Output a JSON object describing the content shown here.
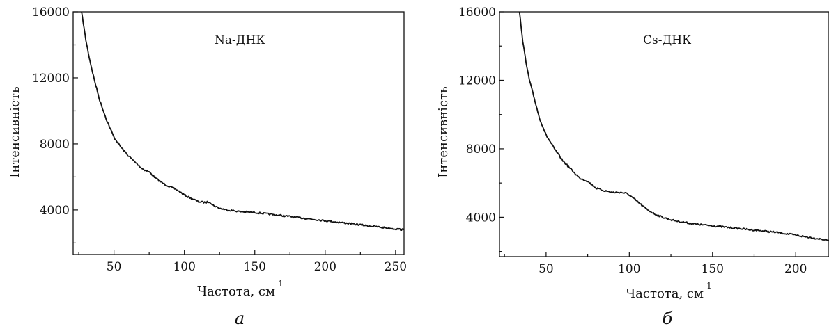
{
  "chart_data": [
    {
      "type": "line",
      "annotation": "Na-ДНК",
      "xlabel": "Частота, см",
      "xlabel_exp": "-1",
      "ylabel": "Інтенсивність",
      "panel_label": "a",
      "xlim": [
        21,
        256
      ],
      "ylim": [
        1300,
        16000
      ],
      "xticks": [
        50,
        100,
        150,
        200,
        250
      ],
      "yticks": [
        4000,
        8000,
        12000,
        16000
      ],
      "series": [
        {
          "x": [
            27,
            30,
            33,
            36,
            40,
            45,
            50,
            55,
            60,
            65,
            70,
            75,
            80,
            85,
            90,
            95,
            100,
            105,
            110,
            115,
            118,
            120,
            125,
            130,
            140,
            150,
            160,
            170,
            180,
            190,
            200,
            210,
            220,
            230,
            240,
            250,
            256
          ],
          "y": [
            16000,
            14300,
            13000,
            11900,
            10600,
            9400,
            8400,
            7800,
            7300,
            6900,
            6500,
            6300,
            5900,
            5600,
            5400,
            5200,
            4900,
            4700,
            4500,
            4450,
            4500,
            4300,
            4100,
            4000,
            3900,
            3850,
            3750,
            3650,
            3550,
            3450,
            3350,
            3250,
            3150,
            3050,
            2950,
            2850,
            2800
          ]
        }
      ]
    },
    {
      "type": "line",
      "annotation": "Cs-ДНК",
      "xlabel": "Частота, см",
      "xlabel_exp": "-1",
      "ylabel": "Інтенсивність",
      "panel_label": "б",
      "xlim": [
        22,
        220
      ],
      "ylim": [
        1700,
        16000
      ],
      "xticks": [
        50,
        100,
        150,
        200
      ],
      "yticks": [
        4000,
        8000,
        12000,
        16000
      ],
      "series": [
        {
          "x": [
            34,
            36,
            38,
            40,
            43,
            46,
            50,
            55,
            60,
            65,
            70,
            75,
            80,
            85,
            90,
            95,
            98,
            100,
            105,
            110,
            115,
            120,
            125,
            130,
            140,
            150,
            160,
            170,
            180,
            190,
            200,
            210,
            220
          ],
          "y": [
            16000,
            14300,
            13000,
            12000,
            10900,
            9800,
            8800,
            8000,
            7300,
            6800,
            6300,
            6100,
            5700,
            5550,
            5450,
            5450,
            5400,
            5300,
            4900,
            4500,
            4200,
            4000,
            3850,
            3750,
            3600,
            3500,
            3400,
            3300,
            3200,
            3100,
            2950,
            2800,
            2650
          ]
        }
      ]
    }
  ]
}
